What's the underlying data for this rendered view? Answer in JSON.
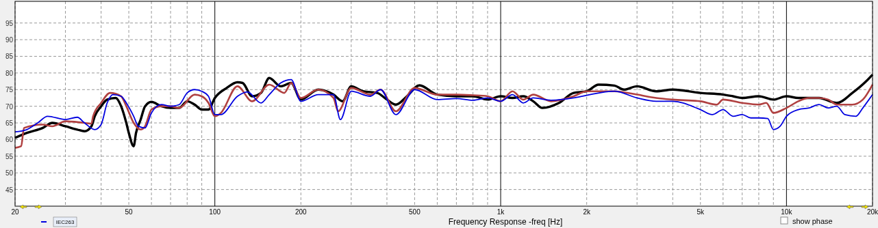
{
  "chart_data": {
    "type": "line",
    "xlabel": "Frequency Response -freq [Hz]",
    "log": "x",
    "grid": true,
    "legend": "bottom",
    "line_style": "solid",
    "marker": "none",
    "xlim": [
      20,
      20000
    ],
    "ylim": [
      40,
      101.5
    ],
    "xticks": [
      20,
      {
        "value": 30,
        "label": null
      },
      {
        "value": 40,
        "label": null
      },
      50,
      {
        "value": 60,
        "label": null
      },
      {
        "value": 70,
        "label": null
      },
      {
        "value": 80,
        "label": null
      },
      {
        "value": 90,
        "label": null
      },
      100,
      200,
      {
        "value": 300,
        "label": null
      },
      {
        "value": 400,
        "label": null
      },
      500,
      {
        "value": 600,
        "label": null
      },
      {
        "value": 700,
        "label": null
      },
      {
        "value": 800,
        "label": null
      },
      {
        "value": 900,
        "label": null
      },
      {
        "value": 1000,
        "label": "1k"
      },
      {
        "value": 2000,
        "label": "2k"
      },
      {
        "value": 3000,
        "label": null
      },
      {
        "value": 4000,
        "label": null
      },
      {
        "value": 5000,
        "label": "5k"
      },
      {
        "value": 6000,
        "label": null
      },
      {
        "value": 7000,
        "label": null
      },
      {
        "value": 8000,
        "label": null
      },
      {
        "value": 9000,
        "label": null
      },
      {
        "value": 10000,
        "label": "10k"
      },
      {
        "value": 20000,
        "label": "20k"
      }
    ],
    "yticks": [
      45,
      50,
      55,
      60,
      65,
      70,
      75,
      80,
      85,
      90,
      95
    ],
    "annotations": [
      "show phase"
    ],
    "series": [
      {
        "color": "#000000",
        "x": [
          20,
          22,
          25,
          27,
          30,
          33,
          35,
          37,
          38,
          40,
          42,
          45,
          47,
          49,
          50,
          52,
          53,
          55,
          57,
          60,
          65,
          70,
          75,
          80,
          85,
          90,
          95,
          100,
          110,
          120,
          125,
          135,
          145,
          155,
          170,
          185,
          200,
          230,
          260,
          280,
          300,
          330,
          370,
          400,
          430,
          470,
          520,
          600,
          700,
          800,
          900,
          1000,
          1100,
          1200,
          1300,
          1400,
          1600,
          1800,
          2000,
          2200,
          2500,
          2700,
          3000,
          3500,
          4000,
          5000,
          6000,
          6500,
          7000,
          8000,
          9000,
          10000,
          11000,
          13000,
          15000,
          17000,
          19000,
          20000
        ],
        "values": [
          60.5,
          62,
          63.5,
          65,
          64,
          63,
          62.5,
          64,
          67,
          70,
          72,
          72.5,
          70,
          65,
          62,
          58,
          62,
          66,
          70,
          71.3,
          70,
          69.5,
          69.5,
          71.5,
          70.5,
          69,
          69,
          72.5,
          75.5,
          77.2,
          77,
          73,
          74,
          78.5,
          76,
          77,
          72,
          75,
          73.5,
          71.5,
          76,
          74.5,
          74,
          72,
          70.5,
          73,
          76.3,
          73.5,
          73,
          73,
          72,
          73,
          72.5,
          73,
          71.5,
          69.5,
          71,
          74,
          74.5,
          76.5,
          76.2,
          75,
          76,
          74.5,
          75,
          74,
          73.5,
          73,
          72.5,
          73,
          72,
          73,
          72.5,
          72.5,
          71,
          74,
          77.5,
          79.5
        ]
      },
      {
        "color": "#b04040",
        "x": [
          20,
          21,
          21.5,
          25,
          27,
          30,
          35,
          37,
          37.5,
          40,
          43,
          47,
          49,
          52,
          55,
          57,
          60,
          65,
          70,
          75,
          85,
          90,
          95,
          100,
          105,
          120,
          135,
          155,
          175,
          185,
          200,
          230,
          260,
          270,
          300,
          350,
          380,
          430,
          500,
          600,
          700,
          800,
          900,
          1000,
          1100,
          1200,
          1300,
          1500,
          1800,
          2000,
          2500,
          3000,
          3500,
          4000,
          5000,
          5700,
          6000,
          7000,
          8000,
          8500,
          9000,
          10000,
          11000,
          12000,
          13000,
          14000,
          15000,
          17000,
          18500,
          20000
        ],
        "values": [
          57.5,
          58,
          63.5,
          64.5,
          64,
          65.5,
          65,
          64.8,
          67,
          71,
          74,
          73,
          70,
          65,
          63,
          64,
          69,
          70,
          70,
          69.5,
          73.5,
          73,
          71,
          67,
          68,
          76,
          71.5,
          76.5,
          74,
          77,
          72.5,
          75,
          72.5,
          68.5,
          75.5,
          73.5,
          75,
          68.5,
          75.5,
          73.5,
          73.5,
          73.3,
          73,
          71.5,
          74.5,
          72,
          73.5,
          71.5,
          73,
          74.5,
          74.5,
          73.5,
          72.5,
          72,
          71.5,
          70.5,
          72,
          71,
          70.5,
          71,
          68,
          69.5,
          71.5,
          72.5,
          72.5,
          72,
          70.5,
          70.5,
          72,
          76.5
        ]
      },
      {
        "name": "IEC263",
        "color": "#0000e0",
        "x": [
          20,
          22,
          24,
          26,
          30,
          33,
          35,
          38,
          40,
          42,
          44,
          47,
          49,
          52,
          54,
          57,
          60,
          65,
          70,
          75,
          80,
          85,
          90,
          95,
          100,
          105,
          120,
          130,
          145,
          155,
          170,
          185,
          200,
          230,
          260,
          275,
          300,
          350,
          380,
          430,
          500,
          600,
          700,
          800,
          900,
          1000,
          1100,
          1200,
          1300,
          1500,
          1800,
          2000,
          2500,
          3000,
          3500,
          4000,
          5000,
          5500,
          6000,
          6500,
          7000,
          7500,
          8000,
          8600,
          9000,
          9500,
          10000,
          11000,
          12000,
          13000,
          14000,
          15000,
          16000,
          17500,
          18500,
          20000
        ],
        "values": [
          62.3,
          63,
          65,
          67,
          66,
          66.7,
          65,
          63,
          64.5,
          71,
          73.5,
          73,
          71,
          67,
          64,
          63.5,
          68,
          70.5,
          70,
          70.5,
          74,
          75,
          74.5,
          73,
          67.5,
          67.5,
          73,
          74.3,
          71,
          73.5,
          77,
          78,
          71.5,
          73.5,
          73.5,
          66,
          74.5,
          73,
          75,
          67.5,
          75,
          72,
          72.3,
          71.8,
          72.5,
          71.5,
          73.5,
          71,
          72.5,
          71.8,
          72.5,
          73.3,
          74.5,
          72.5,
          71.5,
          71.5,
          69,
          67.5,
          69,
          67,
          67.5,
          66.5,
          66.5,
          66.3,
          63,
          64,
          67,
          69,
          69.5,
          70.5,
          69.5,
          70,
          67.5,
          67,
          69.5,
          73.5
        ]
      }
    ]
  }
}
